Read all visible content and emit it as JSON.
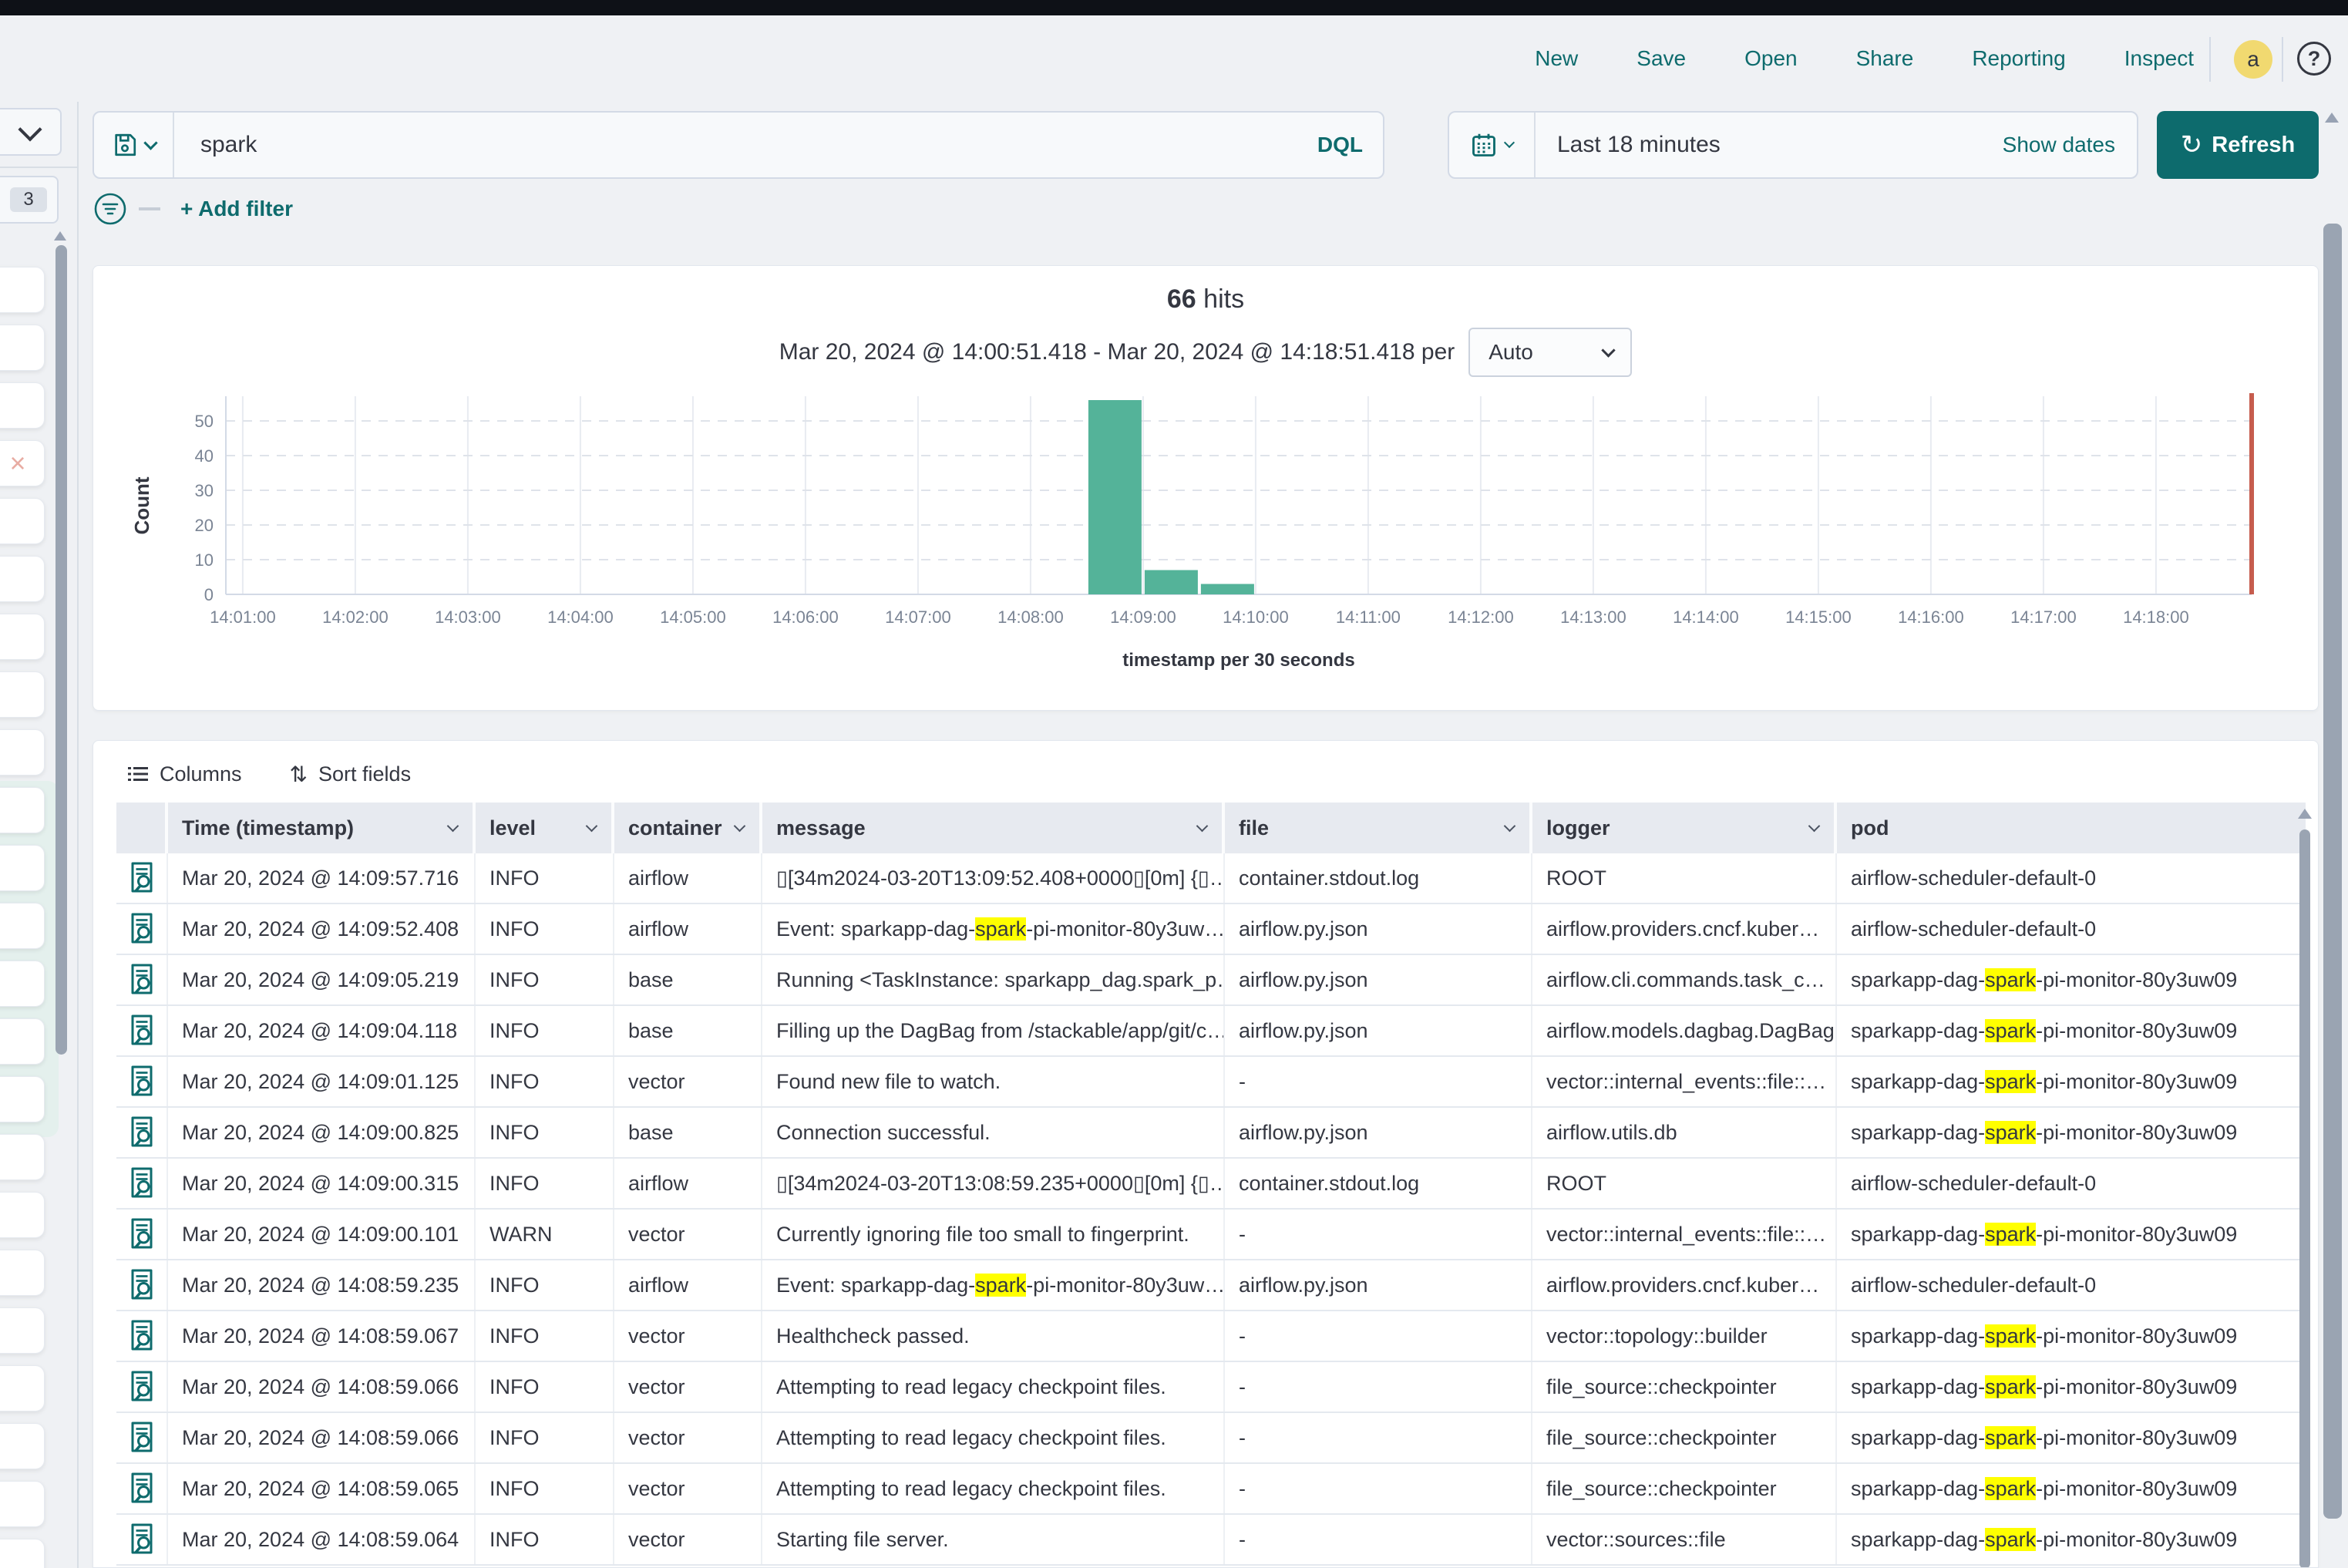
{
  "colors": {
    "accent": "#0E6B6D",
    "bar": "#54B399",
    "time_marker": "#C65C4D",
    "highlight": "#FFFF00",
    "avatar_bg": "#F1D970",
    "header_cell_bg": "#E7EAF0"
  },
  "icons": {
    "refresh_glyph": "↻",
    "help_glyph": "?",
    "close_glyph": "×",
    "sort_glyph": "⇅"
  },
  "header": {
    "nav": [
      "New",
      "Save",
      "Open",
      "Share",
      "Reporting",
      "Inspect"
    ],
    "avatar_letter": "a"
  },
  "search": {
    "query": "spark",
    "language": "DQL",
    "time_range": "Last 18 minutes",
    "show_dates_label": "Show dates",
    "refresh_label": "Refresh"
  },
  "filter_bar": {
    "add_filter_label": "+ Add filter"
  },
  "sidebar": {
    "badge": "3"
  },
  "chart_data": {
    "type": "bar",
    "hits_count": "66",
    "hits_unit": "hits",
    "subtitle": "Mar 20, 2024 @ 14:00:51.418 - Mar 20, 2024 @ 14:18:51.418 per",
    "interval_selected": "Auto",
    "ylabel": "Count",
    "xlabel": "timestamp per 30 seconds",
    "x_start": "14:00:51",
    "x_end": "14:18:51",
    "bucket_seconds": 30,
    "x_ticks": [
      "14:01:00",
      "14:02:00",
      "14:03:00",
      "14:04:00",
      "14:05:00",
      "14:06:00",
      "14:07:00",
      "14:08:00",
      "14:09:00",
      "14:10:00",
      "14:11:00",
      "14:12:00",
      "14:13:00",
      "14:14:00",
      "14:15:00",
      "14:16:00",
      "14:17:00",
      "14:18:00"
    ],
    "y_ticks": [
      0,
      10,
      20,
      30,
      40,
      50
    ],
    "ylim": [
      0,
      57
    ],
    "grid": true,
    "bars": [
      {
        "x": "14:08:30",
        "count": 56
      },
      {
        "x": "14:09:00",
        "count": 7
      },
      {
        "x": "14:09:30",
        "count": 3
      }
    ],
    "now_marker": "14:18:51"
  },
  "table": {
    "toolbar": {
      "columns_label": "Columns",
      "sort_label": "Sort fields"
    },
    "headers": [
      {
        "label": "Time (timestamp)",
        "sortable": true
      },
      {
        "label": "level",
        "sortable": true
      },
      {
        "label": "container",
        "sortable": true
      },
      {
        "label": "message",
        "sortable": true
      },
      {
        "label": "file",
        "sortable": true
      },
      {
        "label": "logger",
        "sortable": true
      },
      {
        "label": "pod",
        "sortable": false
      }
    ],
    "rows": [
      {
        "time": "Mar 20, 2024 @ 14:09:57.716",
        "level": "INFO",
        "container": "airflow",
        "message": [
          {
            "t": "▯[34m2024-03-20T13:09:52.408+0000▯[0m] {▯…",
            "h": false
          }
        ],
        "file": "container.stdout.log",
        "logger": "ROOT",
        "pod": [
          {
            "t": "airflow-scheduler-default-0",
            "h": false
          }
        ]
      },
      {
        "time": "Mar 20, 2024 @ 14:09:52.408",
        "level": "INFO",
        "container": "airflow",
        "message": [
          {
            "t": "Event: sparkapp-dag-",
            "h": false
          },
          {
            "t": "spark",
            "h": true
          },
          {
            "t": "-pi-monitor-80y3uw…",
            "h": false
          }
        ],
        "file": "airflow.py.json",
        "logger": "airflow.providers.cncf.kuber…",
        "pod": [
          {
            "t": "airflow-scheduler-default-0",
            "h": false
          }
        ]
      },
      {
        "time": "Mar 20, 2024 @ 14:09:05.219",
        "level": "INFO",
        "container": "base",
        "message": [
          {
            "t": "Running <TaskInstance: sparkapp_dag.spark_p…",
            "h": false
          }
        ],
        "file": "airflow.py.json",
        "logger": "airflow.cli.commands.task_c…",
        "pod": [
          {
            "t": "sparkapp-dag-",
            "h": false
          },
          {
            "t": "spark",
            "h": true
          },
          {
            "t": "-pi-monitor-80y3uw09",
            "h": false
          }
        ]
      },
      {
        "time": "Mar 20, 2024 @ 14:09:04.118",
        "level": "INFO",
        "container": "base",
        "message": [
          {
            "t": "Filling up the DagBag from /stackable/app/git/c…",
            "h": false
          }
        ],
        "file": "airflow.py.json",
        "logger": "airflow.models.dagbag.DagBag",
        "pod": [
          {
            "t": "sparkapp-dag-",
            "h": false
          },
          {
            "t": "spark",
            "h": true
          },
          {
            "t": "-pi-monitor-80y3uw09",
            "h": false
          }
        ]
      },
      {
        "time": "Mar 20, 2024 @ 14:09:01.125",
        "level": "INFO",
        "container": "vector",
        "message": [
          {
            "t": "Found new file to watch.",
            "h": false
          }
        ],
        "file": "-",
        "logger": "vector::internal_events::file::…",
        "pod": [
          {
            "t": "sparkapp-dag-",
            "h": false
          },
          {
            "t": "spark",
            "h": true
          },
          {
            "t": "-pi-monitor-80y3uw09",
            "h": false
          }
        ]
      },
      {
        "time": "Mar 20, 2024 @ 14:09:00.825",
        "level": "INFO",
        "container": "base",
        "message": [
          {
            "t": "Connection successful.",
            "h": false
          }
        ],
        "file": "airflow.py.json",
        "logger": "airflow.utils.db",
        "pod": [
          {
            "t": "sparkapp-dag-",
            "h": false
          },
          {
            "t": "spark",
            "h": true
          },
          {
            "t": "-pi-monitor-80y3uw09",
            "h": false
          }
        ]
      },
      {
        "time": "Mar 20, 2024 @ 14:09:00.315",
        "level": "INFO",
        "container": "airflow",
        "message": [
          {
            "t": "▯[34m2024-03-20T13:08:59.235+0000▯[0m] {▯…",
            "h": false
          }
        ],
        "file": "container.stdout.log",
        "logger": "ROOT",
        "pod": [
          {
            "t": "airflow-scheduler-default-0",
            "h": false
          }
        ]
      },
      {
        "time": "Mar 20, 2024 @ 14:09:00.101",
        "level": "WARN",
        "container": "vector",
        "message": [
          {
            "t": "Currently ignoring file too small to fingerprint.",
            "h": false
          }
        ],
        "file": "-",
        "logger": "vector::internal_events::file::…",
        "pod": [
          {
            "t": "sparkapp-dag-",
            "h": false
          },
          {
            "t": "spark",
            "h": true
          },
          {
            "t": "-pi-monitor-80y3uw09",
            "h": false
          }
        ]
      },
      {
        "time": "Mar 20, 2024 @ 14:08:59.235",
        "level": "INFO",
        "container": "airflow",
        "message": [
          {
            "t": "Event: sparkapp-dag-",
            "h": false
          },
          {
            "t": "spark",
            "h": true
          },
          {
            "t": "-pi-monitor-80y3uw…",
            "h": false
          }
        ],
        "file": "airflow.py.json",
        "logger": "airflow.providers.cncf.kuber…",
        "pod": [
          {
            "t": "airflow-scheduler-default-0",
            "h": false
          }
        ]
      },
      {
        "time": "Mar 20, 2024 @ 14:08:59.067",
        "level": "INFO",
        "container": "vector",
        "message": [
          {
            "t": "Healthcheck passed.",
            "h": false
          }
        ],
        "file": "-",
        "logger": "vector::topology::builder",
        "pod": [
          {
            "t": "sparkapp-dag-",
            "h": false
          },
          {
            "t": "spark",
            "h": true
          },
          {
            "t": "-pi-monitor-80y3uw09",
            "h": false
          }
        ]
      },
      {
        "time": "Mar 20, 2024 @ 14:08:59.066",
        "level": "INFO",
        "container": "vector",
        "message": [
          {
            "t": "Attempting to read legacy checkpoint files.",
            "h": false
          }
        ],
        "file": "-",
        "logger": "file_source::checkpointer",
        "pod": [
          {
            "t": "sparkapp-dag-",
            "h": false
          },
          {
            "t": "spark",
            "h": true
          },
          {
            "t": "-pi-monitor-80y3uw09",
            "h": false
          }
        ]
      },
      {
        "time": "Mar 20, 2024 @ 14:08:59.066",
        "level": "INFO",
        "container": "vector",
        "message": [
          {
            "t": "Attempting to read legacy checkpoint files.",
            "h": false
          }
        ],
        "file": "-",
        "logger": "file_source::checkpointer",
        "pod": [
          {
            "t": "sparkapp-dag-",
            "h": false
          },
          {
            "t": "spark",
            "h": true
          },
          {
            "t": "-pi-monitor-80y3uw09",
            "h": false
          }
        ]
      },
      {
        "time": "Mar 20, 2024 @ 14:08:59.065",
        "level": "INFO",
        "container": "vector",
        "message": [
          {
            "t": "Attempting to read legacy checkpoint files.",
            "h": false
          }
        ],
        "file": "-",
        "logger": "file_source::checkpointer",
        "pod": [
          {
            "t": "sparkapp-dag-",
            "h": false
          },
          {
            "t": "spark",
            "h": true
          },
          {
            "t": "-pi-monitor-80y3uw09",
            "h": false
          }
        ]
      },
      {
        "time": "Mar 20, 2024 @ 14:08:59.064",
        "level": "INFO",
        "container": "vector",
        "message": [
          {
            "t": "Starting file server.",
            "h": false
          }
        ],
        "file": "-",
        "logger": "vector::sources::file",
        "pod": [
          {
            "t": "sparkapp-dag-",
            "h": false
          },
          {
            "t": "spark",
            "h": true
          },
          {
            "t": "-pi-monitor-80y3uw09",
            "h": false
          }
        ]
      }
    ]
  }
}
